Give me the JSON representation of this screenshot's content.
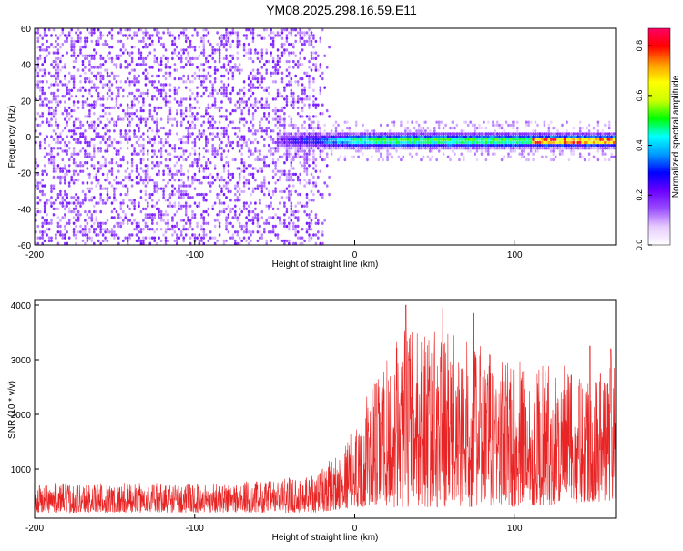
{
  "title": "YM08.2025.298.16.59.E11",
  "chart_data": [
    {
      "type": "heatmap",
      "xlabel": "Height of straight line (km)",
      "ylabel": "Frequency (Hz)",
      "xlim": [
        -200,
        163
      ],
      "ylim": [
        -60,
        60
      ],
      "xticks": [
        -200,
        -100,
        0,
        100
      ],
      "yticks": [
        -60,
        -40,
        -20,
        0,
        20,
        40,
        60
      ],
      "colorbar": {
        "label": "Normalized spectral amplitude",
        "range": [
          0.0,
          0.87
        ],
        "ticks": [
          0.0,
          0.2,
          0.4,
          0.6,
          0.8
        ],
        "colormap": [
          "#ffffff",
          "#e6ccff",
          "#9a4dff",
          "#6a00ff",
          "#0000ff",
          "#0099ff",
          "#00ffff",
          "#00ff00",
          "#ccff00",
          "#ffff00",
          "#ff9900",
          "#ff0000",
          "#ff0066"
        ]
      },
      "features": {
        "noise_region_x": [
          -200,
          -30
        ],
        "signal_band_center_hz": -3,
        "signal_band_halfwidth_hz": 5,
        "signal_start_x": -50,
        "peak_amplitude": 0.85
      }
    },
    {
      "type": "line",
      "xlabel": "Height of straight line (km)",
      "ylabel": "SNR (10 * v/v)",
      "xlim": [
        -200,
        163
      ],
      "ylim": [
        100,
        4100
      ],
      "xticks": [
        -200,
        -100,
        0,
        100
      ],
      "yticks": [
        1000,
        2000,
        3000,
        4000
      ],
      "series": [
        {
          "color": "#e82424",
          "envelope": {
            "x": [
              -200,
              -150,
              -100,
              -50,
              -25,
              -10,
              0,
              10,
              20,
              30,
              50,
              75,
              100,
              125,
              150,
              163
            ],
            "upper": [
              750,
              750,
              750,
              800,
              950,
              1300,
              1800,
              2500,
              3000,
              3600,
              3600,
              3300,
              3000,
              2900,
              2900,
              3100
            ],
            "lower": [
              200,
              200,
              200,
              200,
              200,
              250,
              300,
              300,
              300,
              300,
              300,
              300,
              300,
              350,
              400,
              400
            ]
          },
          "peaks": [
            [
              32,
              4000
            ],
            [
              55,
              3950
            ],
            [
              74,
              3850
            ],
            [
              147,
              3250
            ],
            [
              160,
              3200
            ]
          ]
        }
      ]
    }
  ]
}
